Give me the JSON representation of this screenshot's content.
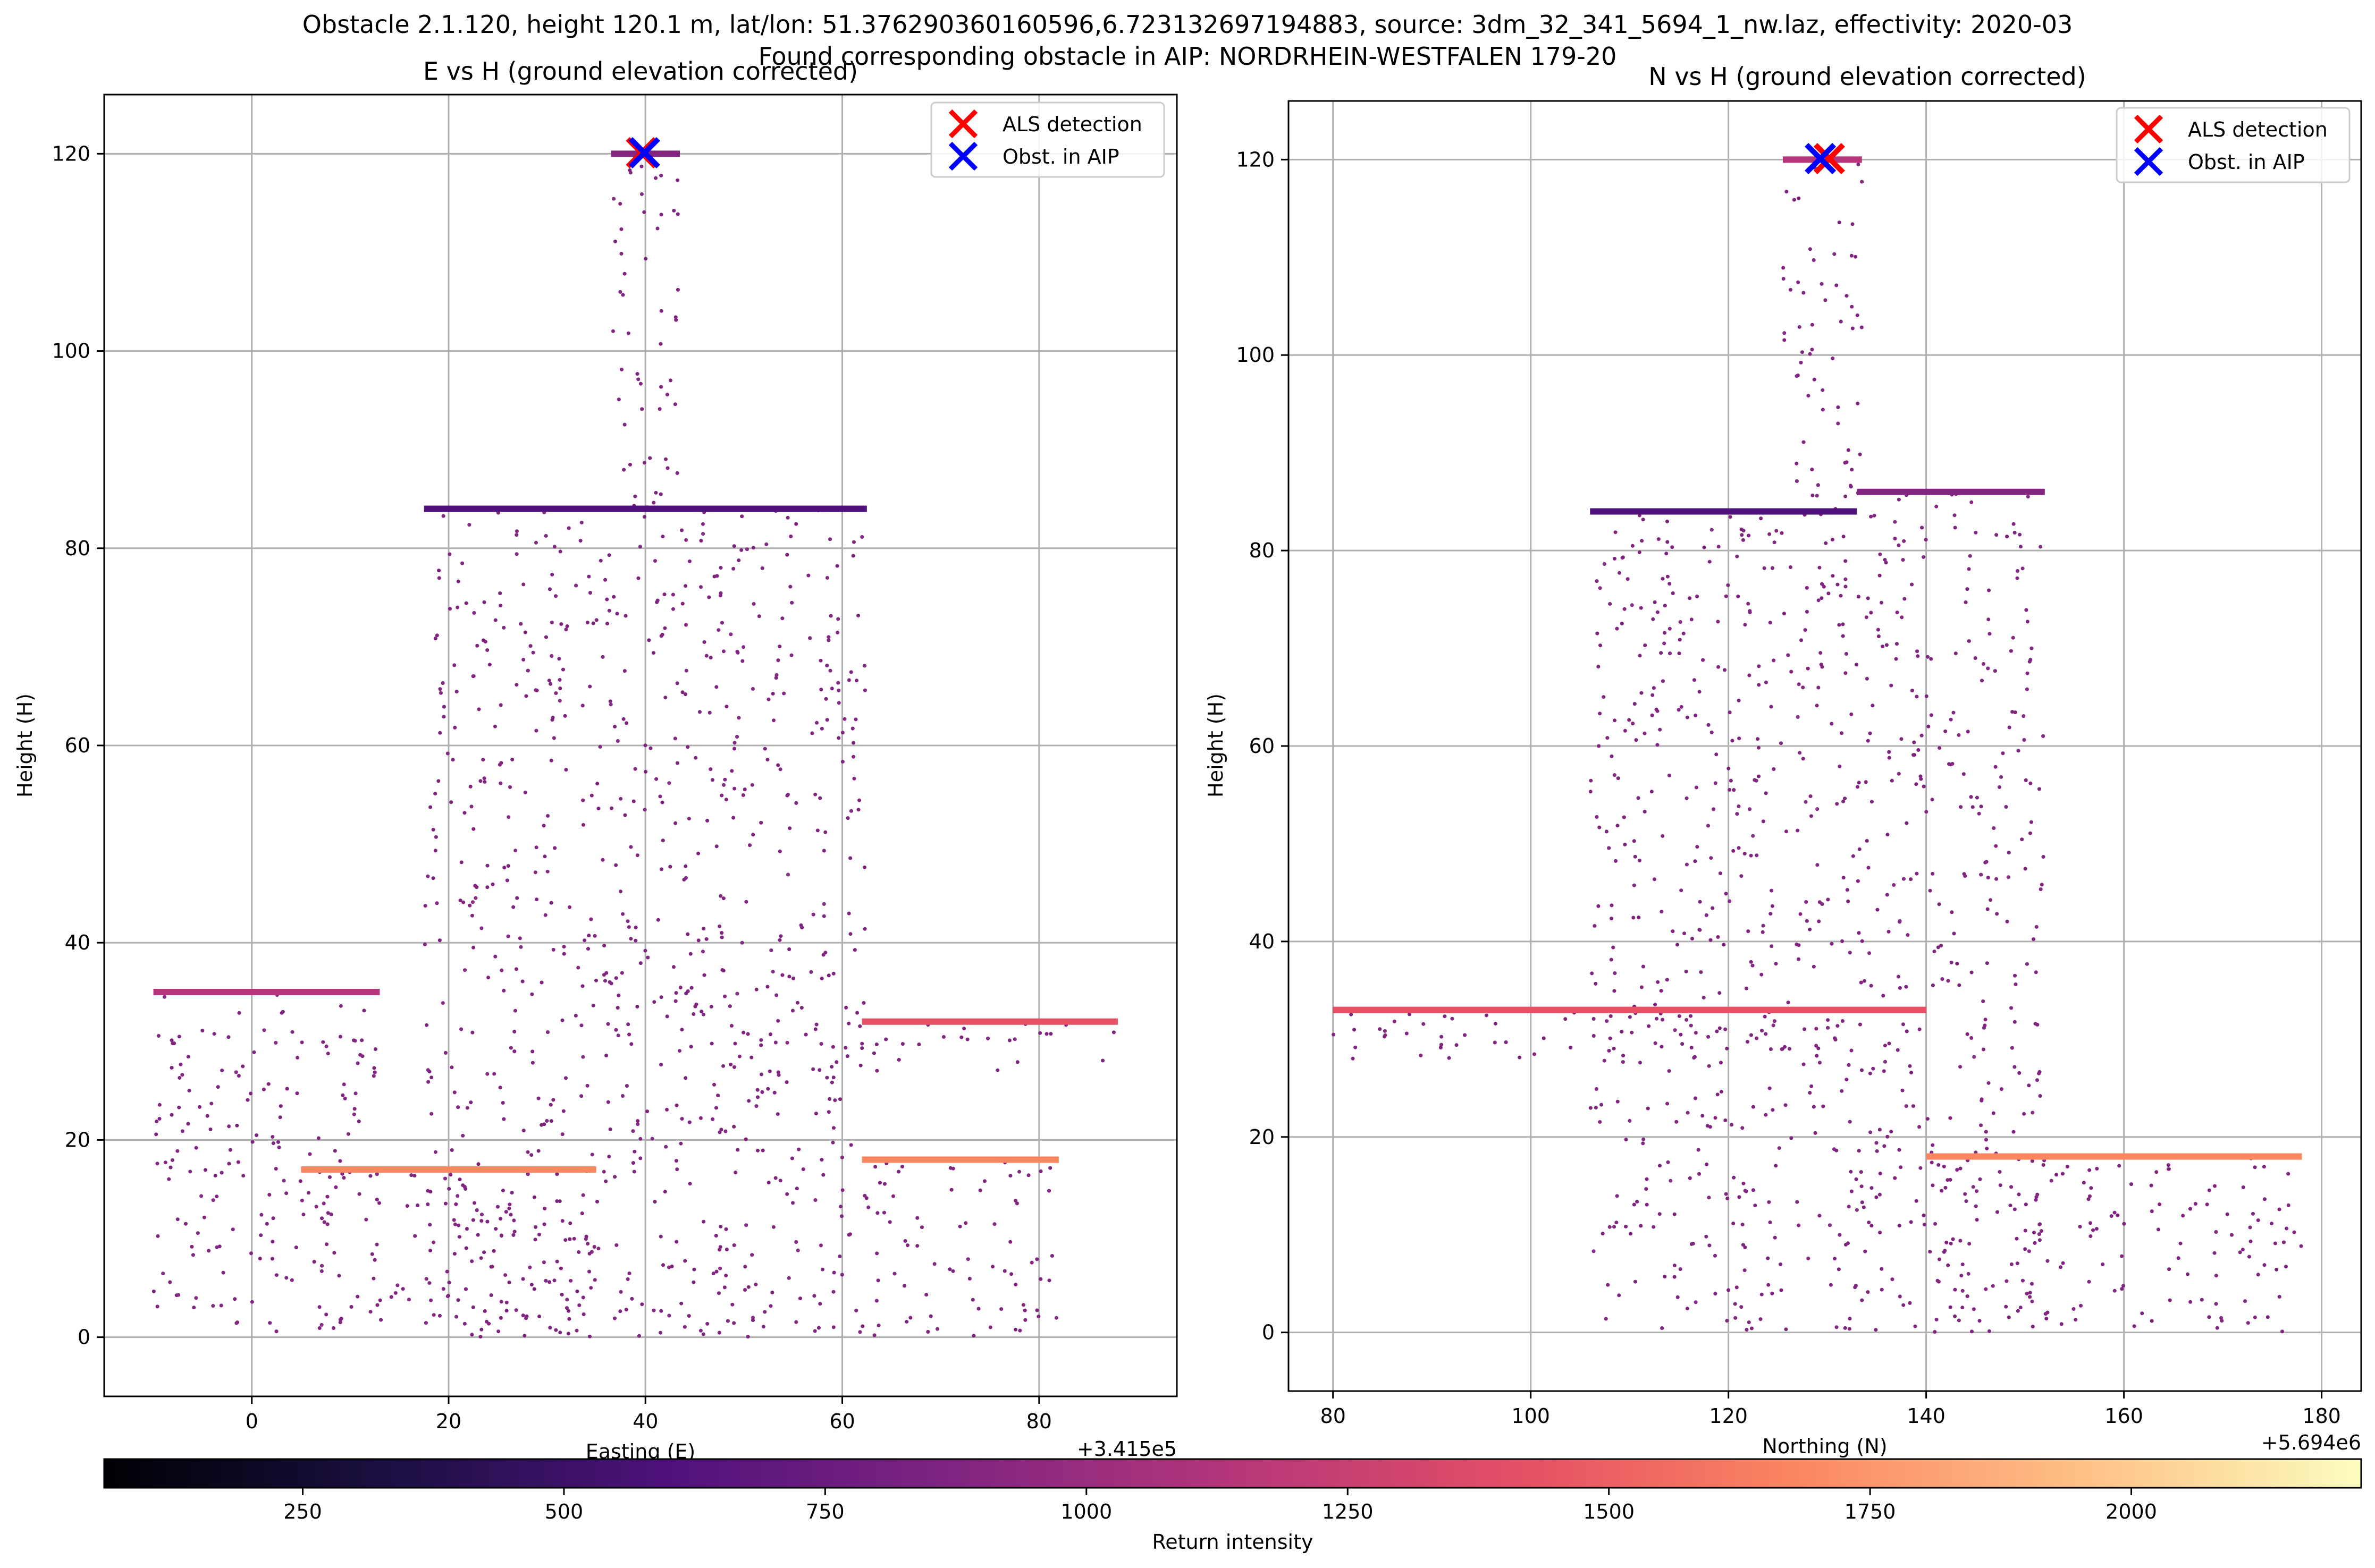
{
  "figure": {
    "title_line1": "Obstacle 2.1.120, height 120.1 m, lat/lon: 51.376290360160596,6.723132697194883, source: 3dm_32_341_5694_1_nw.laz, effectivity: 2020-03",
    "title_line2": "Found corresponding obstacle in AIP: NORDRHEIN-WESTFALEN 179-20"
  },
  "chart_data": [
    {
      "type": "scatter",
      "title": "E vs H (ground elevation corrected)",
      "xlabel": "Easting (E)",
      "ylabel": "Height (H)",
      "x_offset_label": "+3.415e5",
      "xlim": [
        -15,
        94
      ],
      "ylim": [
        -6,
        126
      ],
      "xticks": [
        0,
        20,
        40,
        60,
        80
      ],
      "yticks": [
        0,
        20,
        40,
        60,
        80,
        100,
        120
      ],
      "grid": true,
      "legend_position": "top-right",
      "legend": [
        {
          "label": "ALS detection",
          "color": "#ff0000",
          "marker": "x"
        },
        {
          "label": "Obst. in AIP",
          "color": "#0000ff",
          "marker": "x"
        }
      ],
      "markers": {
        "als_detection": [
          39.6,
          120.1
        ],
        "obst_in_aip": [
          39.9,
          120.1
        ]
      },
      "structures": [
        {
          "x": [
            17.5,
            62.5
          ],
          "y": [
            0,
            84
          ]
        },
        {
          "x": [
            36.5,
            43.5
          ],
          "y": [
            84,
            120
          ]
        },
        {
          "x": [
            -10,
            13
          ],
          "y": [
            0,
            35
          ]
        },
        {
          "x": [
            62,
            88
          ],
          "y": [
            27,
            32
          ]
        },
        {
          "x": [
            62,
            82
          ],
          "y": [
            0,
            18
          ]
        },
        {
          "x": [
            5,
            35
          ],
          "y": [
            0,
            17
          ]
        }
      ]
    },
    {
      "type": "scatter",
      "title": "N vs H (ground elevation corrected)",
      "xlabel": "Northing (N)",
      "ylabel": "Height (H)",
      "x_offset_label": "+5.694e6",
      "xlim": [
        75.5,
        184
      ],
      "ylim": [
        -6,
        126
      ],
      "xticks": [
        80,
        100,
        120,
        140,
        160,
        180
      ],
      "yticks": [
        0,
        20,
        40,
        60,
        80,
        100,
        120
      ],
      "grid": true,
      "legend_position": "top-right",
      "legend": [
        {
          "label": "ALS detection",
          "color": "#ff0000",
          "marker": "x"
        },
        {
          "label": "Obst. in AIP",
          "color": "#0000ff",
          "marker": "x"
        }
      ],
      "markers": {
        "als_detection": [
          130.2,
          120.1
        ],
        "obst_in_aip": [
          129.3,
          120.1
        ]
      },
      "structures": [
        {
          "x": [
            106,
            133
          ],
          "y": [
            0,
            84
          ]
        },
        {
          "x": [
            133,
            152
          ],
          "y": [
            0,
            86
          ]
        },
        {
          "x": [
            125.5,
            133.5
          ],
          "y": [
            84,
            120
          ]
        },
        {
          "x": [
            80,
            140
          ],
          "y": [
            28,
            33
          ]
        },
        {
          "x": [
            140,
            178
          ],
          "y": [
            0,
            18
          ]
        }
      ]
    }
  ],
  "colorbar": {
    "label": "Return intensity",
    "colormap": "magma",
    "range": [
      60,
      2220
    ],
    "ticks": [
      250,
      500,
      750,
      1000,
      1250,
      1500,
      1750,
      2000
    ]
  }
}
